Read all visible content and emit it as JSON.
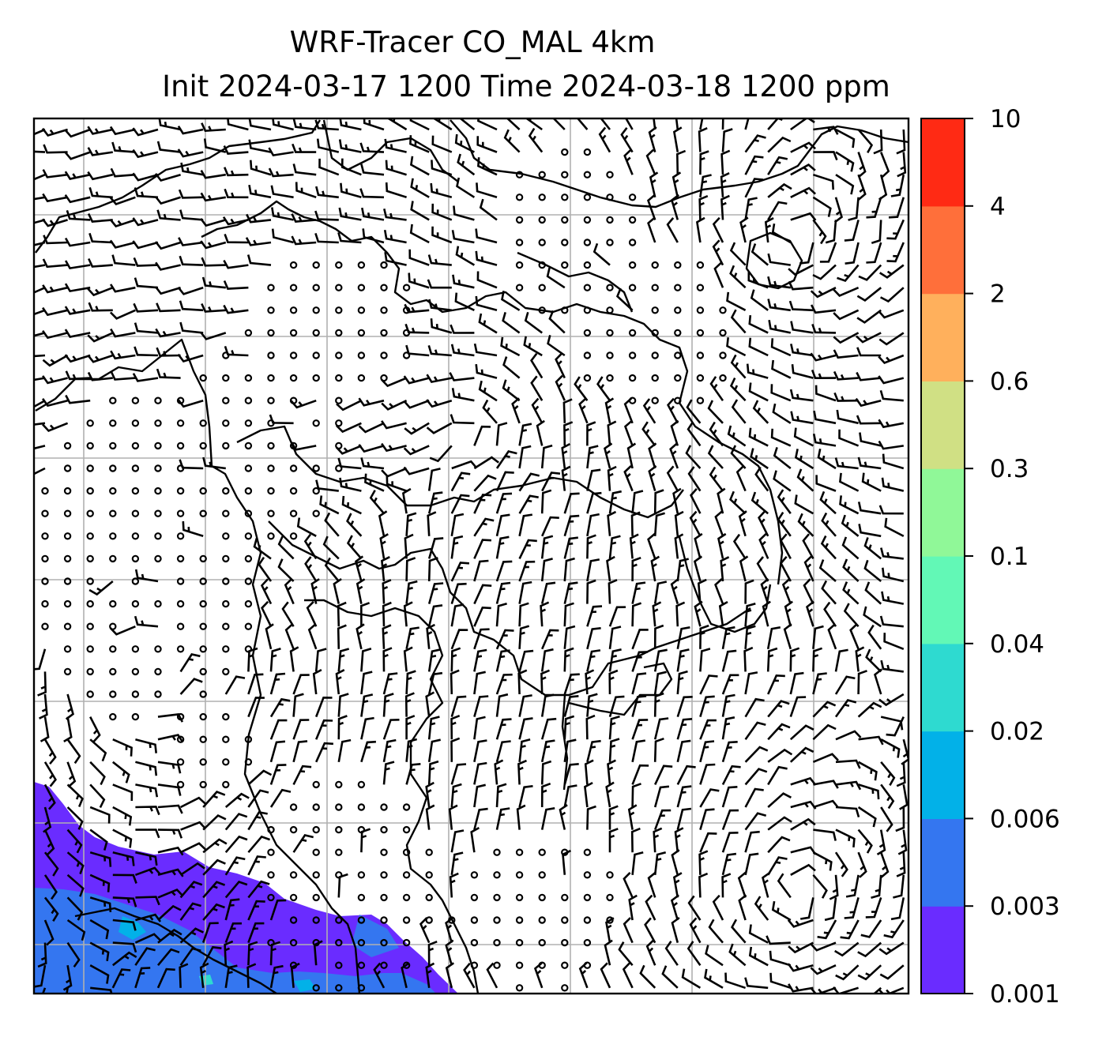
{
  "chart_data": {
    "type": "heatmap",
    "title_lines": [
      "WRF-Tracer CO_MAL 4km",
      "Init 2024-03-17 1200 Time 2024-03-18 1200 ppm"
    ],
    "variable": "CO_MAL",
    "units": "ppm",
    "init_time": "2024-03-17 1200",
    "valid_time": "2024-03-18 1200",
    "colorbar": {
      "levels": [
        "0.001",
        "0.003",
        "0.006",
        "0.02",
        "0.04",
        "0.1",
        "0.3",
        "0.6",
        "2",
        "4",
        "10"
      ],
      "colors": [
        "#6a2cff",
        "#3476f0",
        "#02b1e8",
        "#2edad0",
        "#62f8b6",
        "#90f898",
        "#d0e084",
        "#ffb05c",
        "#ff6f3a",
        "#ff2a14"
      ]
    },
    "tracer_plume": {
      "location": "bottom-left corner",
      "levels_present": [
        "0.001-0.003",
        "0.003-0.006",
        "0.006-0.02"
      ]
    },
    "overlays": [
      "wind barbs",
      "coastlines",
      "lat-lon gridlines"
    ],
    "grid": true,
    "legend": "colorbar right"
  }
}
